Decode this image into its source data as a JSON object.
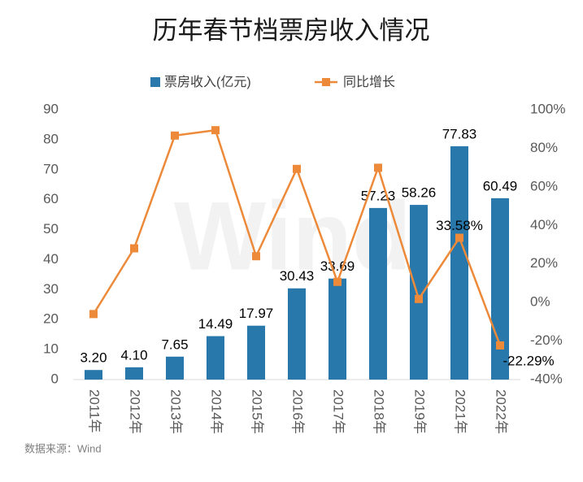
{
  "chart_data": {
    "type": "bar-line",
    "title": "历年春节档票房收入情况",
    "source": "数据来源：Wind",
    "watermark": "Wind",
    "categories": [
      "2011年",
      "2012年",
      "2013年",
      "2014年",
      "2015年",
      "2016年",
      "2017年",
      "2018年",
      "2019年",
      "2021年",
      "2022年"
    ],
    "series": [
      {
        "name": "票房收入(亿元)",
        "type": "bar",
        "color": "#2878ab",
        "values": [
          3.2,
          4.1,
          7.65,
          14.49,
          17.97,
          30.43,
          33.69,
          57.23,
          58.26,
          77.83,
          60.49
        ],
        "value_labels": [
          "3.20",
          "4.10",
          "7.65",
          "14.49",
          "17.97",
          "30.43",
          "33.69",
          "57.23",
          "58.26",
          "77.83",
          "60.49"
        ]
      },
      {
        "name": "同比增长",
        "type": "line",
        "axis": "y2",
        "color": "#ed8a3a",
        "values": [
          -6,
          28.1,
          86.6,
          89.4,
          24,
          69.3,
          10.7,
          69.9,
          1.8,
          33.58,
          -22.29
        ],
        "value_labels": [
          null,
          null,
          null,
          null,
          null,
          null,
          null,
          null,
          null,
          "33.58%",
          "-22.29%"
        ]
      }
    ],
    "ylim": [
      0,
      90
    ],
    "yticks": [
      0,
      10,
      20,
      30,
      40,
      50,
      60,
      70,
      80,
      90
    ],
    "y2lim": [
      -40,
      100
    ],
    "y2ticks": [
      {
        "value": -40,
        "label": "-40%"
      },
      {
        "value": -20,
        "label": "-20%"
      },
      {
        "value": 0,
        "label": "0%"
      },
      {
        "value": 20,
        "label": "20%"
      },
      {
        "value": 40,
        "label": "40%"
      },
      {
        "value": 60,
        "label": "60%"
      },
      {
        "value": 80,
        "label": "80%"
      },
      {
        "value": 100,
        "label": "100%"
      }
    ]
  }
}
